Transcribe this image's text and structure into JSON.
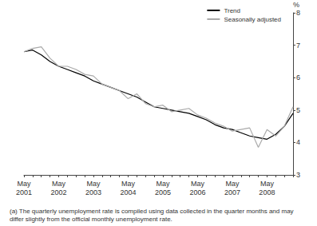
{
  "chart_data": {
    "type": "line",
    "categories": [
      "May 2001",
      null,
      null,
      null,
      "May 2002",
      null,
      null,
      null,
      "May 2003",
      null,
      null,
      null,
      "May 2004",
      null,
      null,
      null,
      "May 2005",
      null,
      null,
      null,
      "May 2006",
      null,
      null,
      null,
      "May 2007",
      null,
      null,
      null,
      "May 2008",
      null,
      null,
      null
    ],
    "series": [
      {
        "name": "Trend",
        "color": "#000000",
        "values": [
          6.8,
          6.85,
          6.7,
          6.5,
          6.35,
          6.25,
          6.15,
          6.05,
          5.9,
          5.8,
          5.7,
          5.6,
          5.5,
          5.4,
          5.25,
          5.1,
          5.05,
          5.0,
          4.95,
          4.9,
          4.8,
          4.7,
          4.55,
          4.45,
          4.4,
          4.3,
          4.2,
          4.15,
          4.1,
          4.25,
          4.5,
          4.9
        ]
      },
      {
        "name": "Seasonally adjusted",
        "color": "#aaaaaa",
        "values": [
          6.8,
          6.9,
          6.95,
          6.6,
          6.35,
          6.35,
          6.25,
          6.1,
          6.05,
          5.8,
          5.7,
          5.6,
          5.35,
          5.5,
          5.2,
          5.1,
          5.15,
          4.95,
          5.0,
          5.05,
          4.85,
          4.75,
          4.6,
          4.5,
          4.35,
          4.4,
          4.45,
          3.85,
          4.4,
          4.2,
          4.5,
          5.1
        ]
      }
    ],
    "y_label": "%",
    "ylim": [
      3,
      8
    ],
    "yticks": [
      3,
      4,
      5,
      6,
      7,
      8
    ],
    "grid": false,
    "legend": "top-right",
    "annotations": [
      "(a) The quarterly unemployment rate is compiled using data collected in the quarter months and may differ slightly from the official monthly unemployment rate."
    ]
  }
}
